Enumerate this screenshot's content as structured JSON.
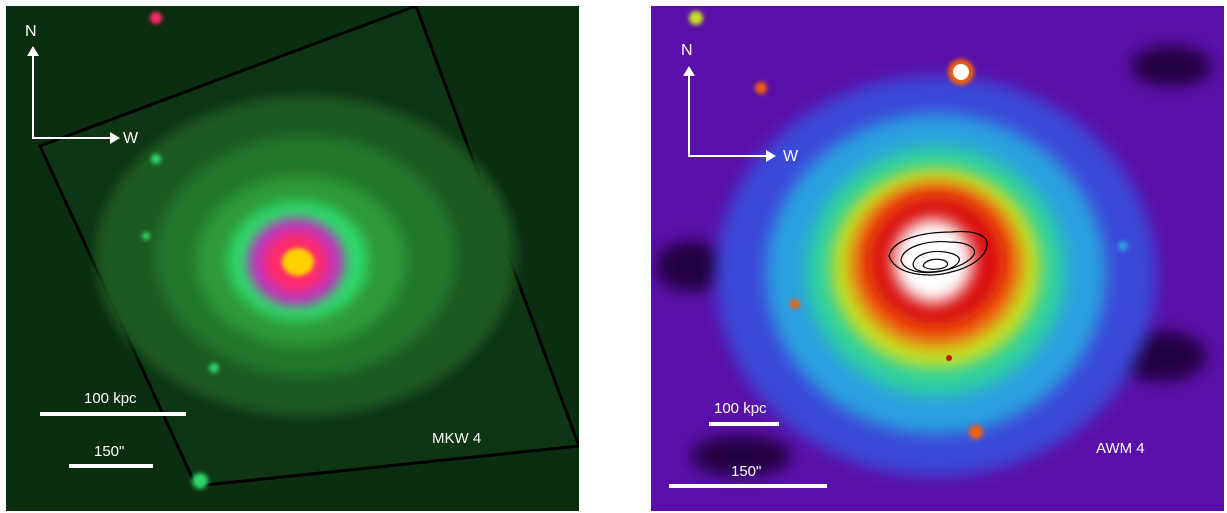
{
  "left_panel": {
    "object_label": "MKW 4",
    "compass": {
      "north": "N",
      "west": "W"
    },
    "scalebar_kpc": "100 kpc",
    "scalebar_arcsec": "150\""
  },
  "right_panel": {
    "object_label": "AWM 4",
    "compass": {
      "north": "N",
      "west": "W"
    },
    "scalebar_kpc": "100 kpc",
    "scalebar_arcsec": "150\""
  }
}
